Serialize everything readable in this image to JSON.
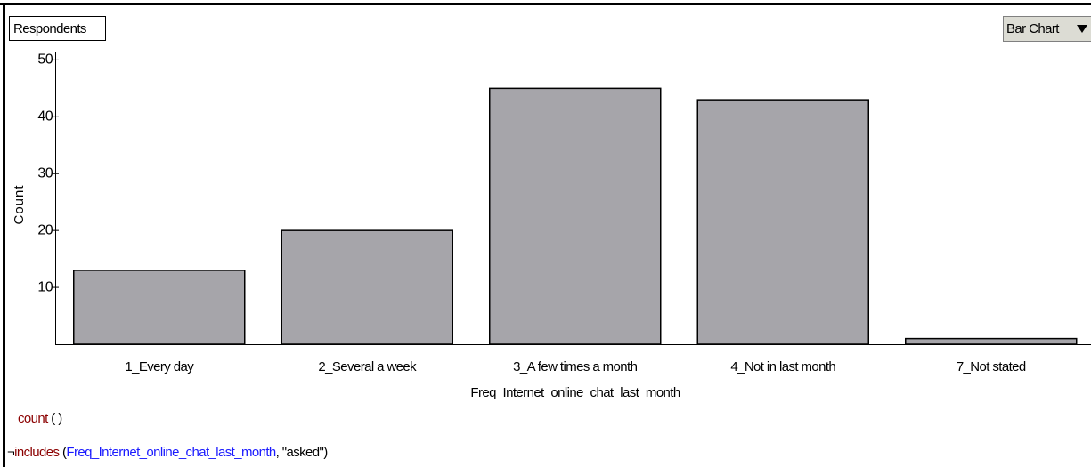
{
  "collection_label": "Respondents",
  "chart_menu": "Bar Chart",
  "formula": {
    "function": "count",
    "args": "( )"
  },
  "filter": {
    "negation": "¬",
    "function": "includes",
    "open": "(",
    "attribute": "Freq_Internet_online_chat_last_month",
    "rest": ", \"asked\")"
  },
  "chart_data": {
    "type": "bar",
    "x_label": "Freq_Internet_online_chat_last_month",
    "y_label": "Count",
    "categories": [
      "1_Every day",
      "2_Several a week",
      "3_A few times a month",
      "4_Not in last month",
      "7_Not stated"
    ],
    "values": [
      13,
      20,
      45,
      43,
      1
    ],
    "color": "#a6a5aa",
    "ylim": [
      0,
      51
    ],
    "yticks": [
      10,
      20,
      30,
      40,
      50
    ],
    "grid": false
  }
}
